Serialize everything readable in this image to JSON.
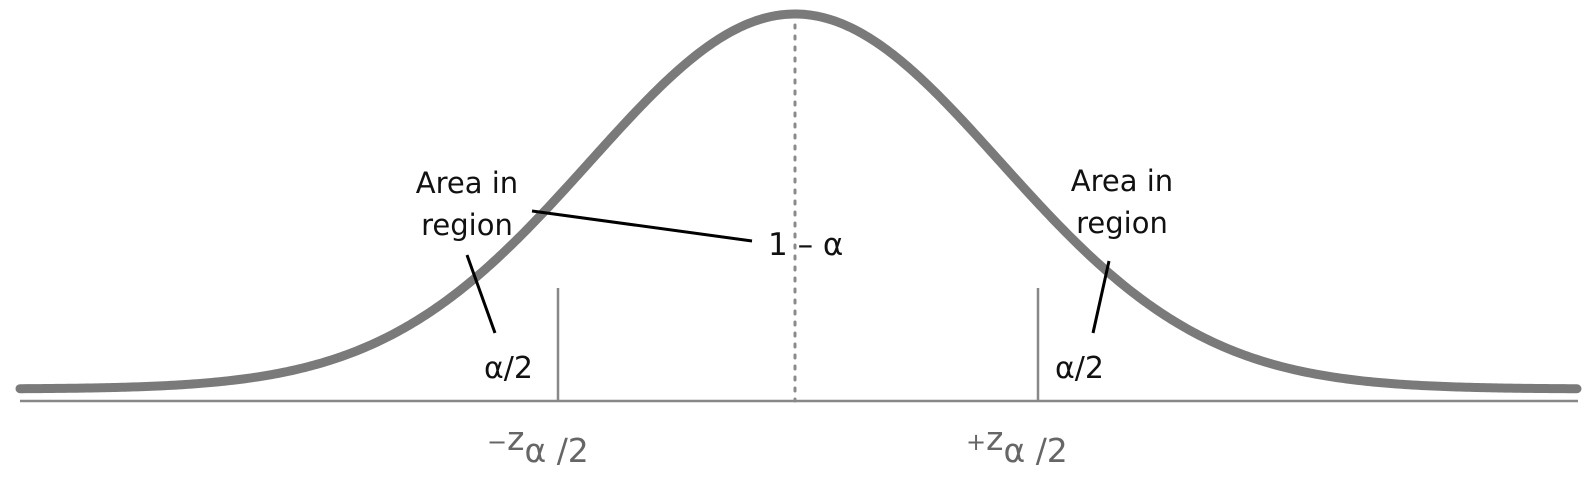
{
  "labels": {
    "left_area_line1": "Area in",
    "left_area_line2": "region",
    "right_area_line1": "Area in",
    "right_area_line2": "region",
    "center_area": "1 – α",
    "left_tail": "α/2",
    "right_tail": "α/2",
    "left_critical": {
      "sign": "−",
      "z": "z",
      "sub": "α",
      "suffix": " /2"
    },
    "right_critical": {
      "sign": "+",
      "z": "z",
      "sub": "α",
      "suffix": " /2"
    }
  },
  "colors": {
    "curve": "#7a7a7a",
    "axis": "#888888",
    "text": "#111111",
    "critical_text": "#666666",
    "leader_line": "#000000"
  }
}
